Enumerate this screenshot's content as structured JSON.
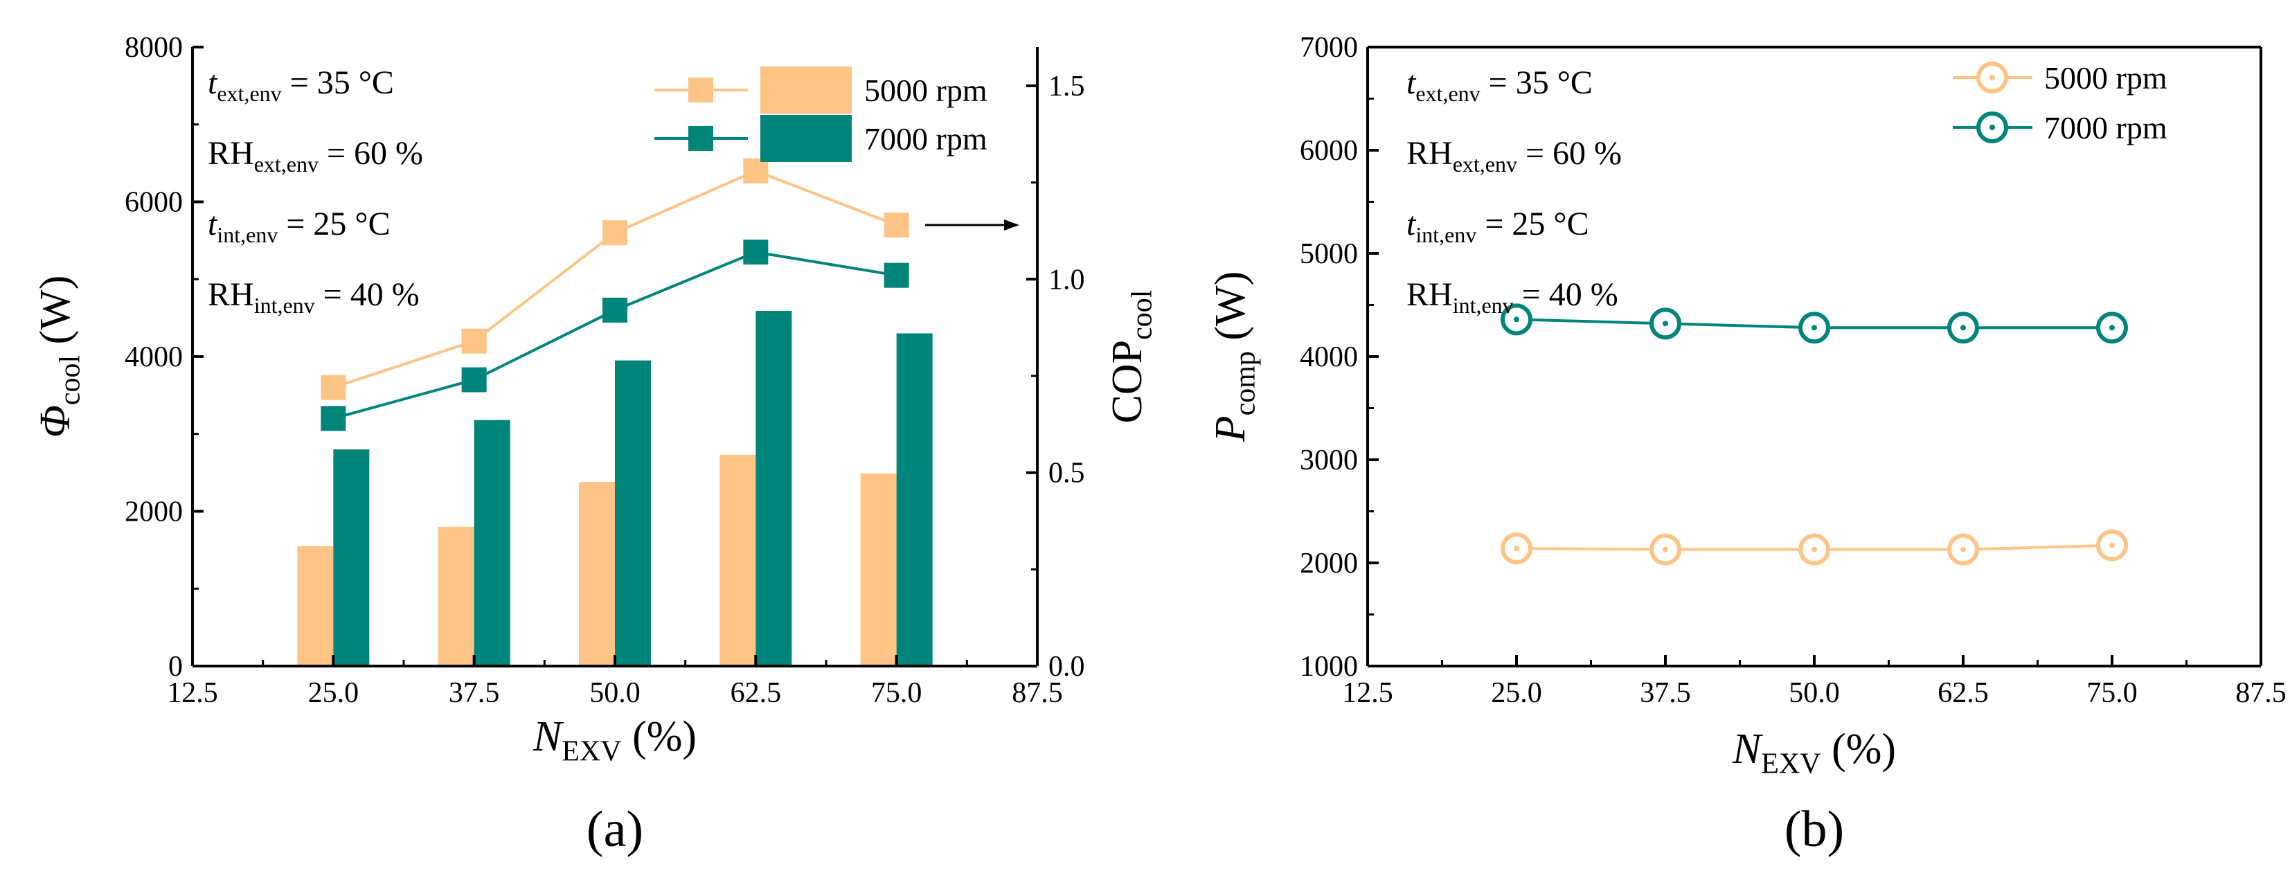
{
  "colors": {
    "c5000": "#FDC485",
    "c7000": "#00857A",
    "axis": "#000000"
  },
  "chart_data": [
    {
      "id": "a",
      "type": "bar",
      "panel_label": "(a)",
      "x": [
        25.0,
        37.5,
        50.0,
        62.5,
        75.0
      ],
      "x_ticks": [
        "12.5",
        "25.0",
        "37.5",
        "50.0",
        "62.5",
        "75.0",
        "87.5"
      ],
      "xlabel": {
        "main": "N",
        "sub": "EXV",
        "rest": " (%)"
      },
      "ylabel_left": {
        "main": "Φ",
        "sub": "cool",
        "rest": " (W)"
      },
      "ylabel_right": {
        "main": "COP",
        "sub": "cool"
      },
      "ylim_left": [
        0,
        8000
      ],
      "ylim_right": [
        0,
        1.6
      ],
      "y_ticks_left": [
        "0",
        "2000",
        "4000",
        "6000",
        "8000"
      ],
      "y_ticks_right": [
        "0.0",
        "0.5",
        "1.0",
        "1.5"
      ],
      "bar_series": [
        {
          "name": "5000 rpm",
          "values": [
            1550,
            1800,
            2380,
            2730,
            2490
          ]
        },
        {
          "name": "7000 rpm",
          "values": [
            2800,
            3180,
            3950,
            4590,
            4300
          ]
        }
      ],
      "line_series": [
        {
          "name": "5000 rpm",
          "axis": "right",
          "values": [
            0.72,
            0.84,
            1.12,
            1.28,
            1.14
          ]
        },
        {
          "name": "7000 rpm",
          "axis": "right",
          "values": [
            0.64,
            0.74,
            0.92,
            1.07,
            1.01
          ]
        }
      ],
      "legend": [
        "5000 rpm",
        "7000 rpm"
      ],
      "legend_position": "top-right",
      "annotation": "arrow pointing to right axis (COP)",
      "conditions": [
        {
          "main": "t",
          "sub": "ext,env",
          "rest": " = 35 °C"
        },
        {
          "main": "RH",
          "sub": "ext,env",
          "rest": " = 60 %"
        },
        {
          "main": "t",
          "sub": "int,env",
          "rest": " = 25 °C"
        },
        {
          "main": "RH",
          "sub": "int,env",
          "rest": " = 40 %"
        }
      ]
    },
    {
      "id": "b",
      "type": "line",
      "panel_label": "(b)",
      "x": [
        25.0,
        37.5,
        50.0,
        62.5,
        75.0
      ],
      "x_ticks": [
        "12.5",
        "25.0",
        "37.5",
        "50.0",
        "62.5",
        "75.0",
        "87.5"
      ],
      "xlabel": {
        "main": "N",
        "sub": "EXV",
        "rest": " (%)"
      },
      "ylabel": {
        "main": "P",
        "sub": "comp",
        "rest": " (W)"
      },
      "ylim": [
        1000,
        7000
      ],
      "y_ticks": [
        "1000",
        "2000",
        "3000",
        "4000",
        "5000",
        "6000",
        "7000"
      ],
      "series": [
        {
          "name": "5000 rpm",
          "values": [
            2140,
            2130,
            2130,
            2130,
            2170
          ]
        },
        {
          "name": "7000 rpm",
          "values": [
            4360,
            4320,
            4280,
            4280,
            4280
          ]
        }
      ],
      "legend": [
        "5000 rpm",
        "7000 rpm"
      ],
      "legend_position": "top-right",
      "conditions": [
        {
          "main": "t",
          "sub": "ext,env",
          "rest": " = 35 °C"
        },
        {
          "main": "RH",
          "sub": "ext,env",
          "rest": " = 60 %"
        },
        {
          "main": "t",
          "sub": "int,env",
          "rest": " = 25 °C"
        },
        {
          "main": "RH",
          "sub": "int,env",
          "rest": " = 40 %"
        }
      ]
    }
  ]
}
